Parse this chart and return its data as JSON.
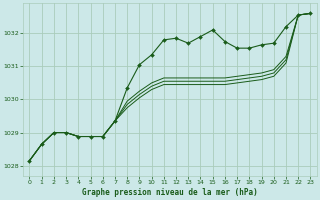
{
  "bg_color": "#cce8e8",
  "grid_color": "#aaccbb",
  "line_color": "#1a5c1a",
  "marker_color": "#1a5c1a",
  "xlabel": "Graphe pression niveau de la mer (hPa)",
  "xlabel_color": "#1a5c1a",
  "xlim": [
    -0.5,
    23.5
  ],
  "ylim": [
    1027.7,
    1032.9
  ],
  "yticks": [
    1028,
    1029,
    1030,
    1031,
    1032
  ],
  "xticks": [
    0,
    1,
    2,
    3,
    4,
    5,
    6,
    7,
    8,
    9,
    10,
    11,
    12,
    13,
    14,
    15,
    16,
    17,
    18,
    19,
    20,
    21,
    22,
    23
  ],
  "series1_x": [
    0,
    1,
    2,
    3,
    4,
    5,
    6,
    7,
    8,
    9,
    10,
    11,
    12,
    13,
    14,
    15,
    16,
    17,
    18,
    19,
    20,
    21,
    22,
    23
  ],
  "series1_y": [
    1028.15,
    1028.65,
    1029.0,
    1029.0,
    1028.88,
    1028.88,
    1028.88,
    1029.35,
    1030.35,
    1031.05,
    1031.35,
    1031.8,
    1031.85,
    1031.7,
    1031.9,
    1032.1,
    1031.75,
    1031.55,
    1031.55,
    1031.65,
    1031.7,
    1032.2,
    1032.55,
    1032.6
  ],
  "series2_x": [
    0,
    1,
    2,
    3,
    4,
    5,
    6,
    7,
    8,
    9,
    10,
    11,
    12,
    13,
    14,
    15,
    16,
    17,
    18,
    19,
    20,
    21,
    22,
    23
  ],
  "series2_y": [
    1028.15,
    1028.65,
    1029.0,
    1029.0,
    1028.88,
    1028.88,
    1028.88,
    1029.35,
    1029.95,
    1030.25,
    1030.5,
    1030.65,
    1030.65,
    1030.65,
    1030.65,
    1030.65,
    1030.65,
    1030.7,
    1030.75,
    1030.8,
    1030.9,
    1031.3,
    1032.55,
    1032.6
  ],
  "series3_x": [
    0,
    1,
    2,
    3,
    4,
    5,
    6,
    7,
    8,
    9,
    10,
    11,
    12,
    13,
    14,
    15,
    16,
    17,
    18,
    19,
    20,
    21,
    22,
    23
  ],
  "series3_y": [
    1028.15,
    1028.65,
    1029.0,
    1029.0,
    1028.88,
    1028.88,
    1028.88,
    1029.35,
    1029.85,
    1030.15,
    1030.4,
    1030.55,
    1030.55,
    1030.55,
    1030.55,
    1030.55,
    1030.55,
    1030.6,
    1030.65,
    1030.7,
    1030.8,
    1031.2,
    1032.55,
    1032.6
  ],
  "series4_x": [
    0,
    1,
    2,
    3,
    4,
    5,
    6,
    7,
    8,
    9,
    10,
    11,
    12,
    13,
    14,
    15,
    16,
    17,
    18,
    19,
    20,
    21,
    22,
    23
  ],
  "series4_y": [
    1028.15,
    1028.65,
    1029.0,
    1029.0,
    1028.88,
    1028.88,
    1028.88,
    1029.35,
    1029.75,
    1030.05,
    1030.3,
    1030.45,
    1030.45,
    1030.45,
    1030.45,
    1030.45,
    1030.45,
    1030.5,
    1030.55,
    1030.6,
    1030.7,
    1031.1,
    1032.55,
    1032.6
  ]
}
